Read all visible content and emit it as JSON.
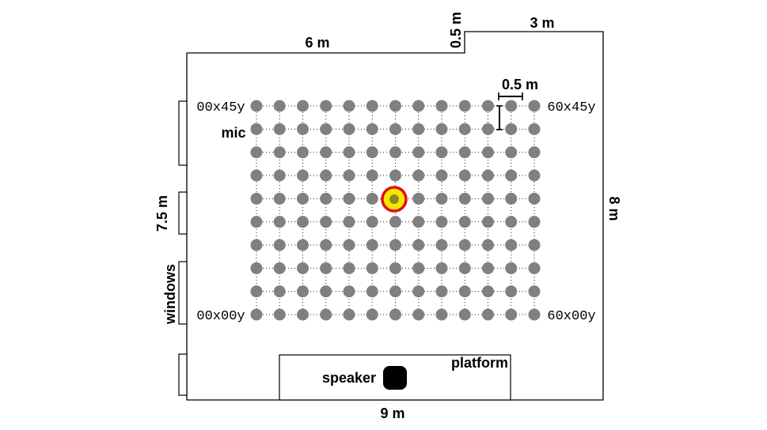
{
  "dimensions": {
    "top_left_width": "6 m",
    "notch_depth": "0.5 m",
    "top_right_width": "3 m",
    "spacing": "0.5 m",
    "left_height": "7.5 m",
    "right_height": "8 m",
    "bottom_width": "9 m"
  },
  "labels": {
    "mic": "mic",
    "windows": "windows",
    "platform": "platform",
    "speaker": "speaker"
  },
  "grid": {
    "columns": 13,
    "rows": 10,
    "corner_top_left": "00x45y",
    "corner_top_right": "60x45y",
    "corner_bottom_left": "00x00y",
    "corner_bottom_right": "60x00y",
    "highlighted_mic": {
      "column": 6,
      "row": 4
    }
  },
  "colors": {
    "mic_dot": "#808080",
    "highlight_fill": "#f4e800",
    "highlight_ring": "#dd1111",
    "highlight_center": "#8a8a1c",
    "speaker": "#000000"
  }
}
